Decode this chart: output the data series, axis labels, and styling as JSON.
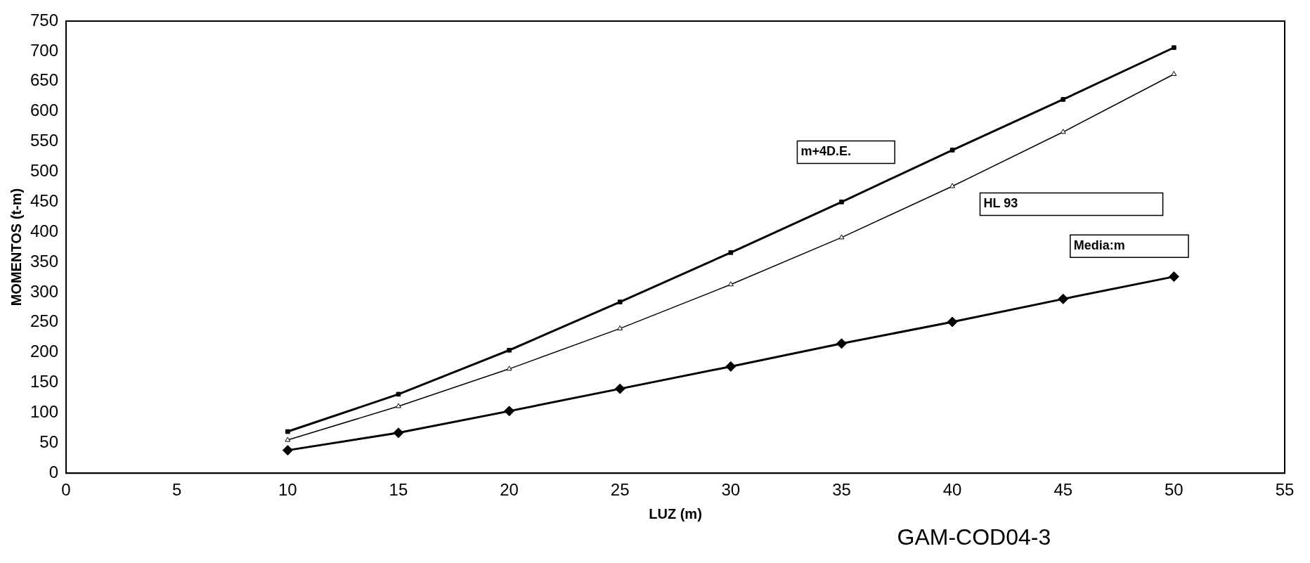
{
  "chart_data": {
    "type": "line",
    "xlabel": "LUZ (m)",
    "ylabel": "MOMENTOS (t-m)",
    "x": [
      10,
      15,
      20,
      25,
      30,
      35,
      40,
      45,
      50
    ],
    "series": [
      {
        "name": "m+4D.E.",
        "color": "#000000",
        "marker": "square",
        "values": [
          69,
          131,
          204,
          284,
          366,
          450,
          536,
          620,
          706
        ]
      },
      {
        "name": "HL 93",
        "color": "#000000",
        "marker": "triangle",
        "values": [
          55,
          111,
          173,
          240,
          313,
          391,
          476,
          566,
          662
        ]
      },
      {
        "name": "Media:m",
        "color": "#000000",
        "marker": "diamond",
        "values": [
          38,
          67,
          103,
          140,
          177,
          215,
          251,
          289,
          326
        ]
      }
    ],
    "xlim": [
      0,
      55
    ],
    "xticks": [
      0,
      5,
      10,
      15,
      20,
      25,
      30,
      35,
      40,
      45,
      50,
      55
    ],
    "ylim": [
      0,
      750
    ],
    "yticks": [
      0,
      50,
      100,
      150,
      200,
      250,
      300,
      350,
      400,
      450,
      500,
      550,
      600,
      650,
      700,
      750
    ],
    "grid": false,
    "legend": false,
    "line_style": "solid",
    "annotations": [
      "GAM-COD04-3"
    ]
  }
}
